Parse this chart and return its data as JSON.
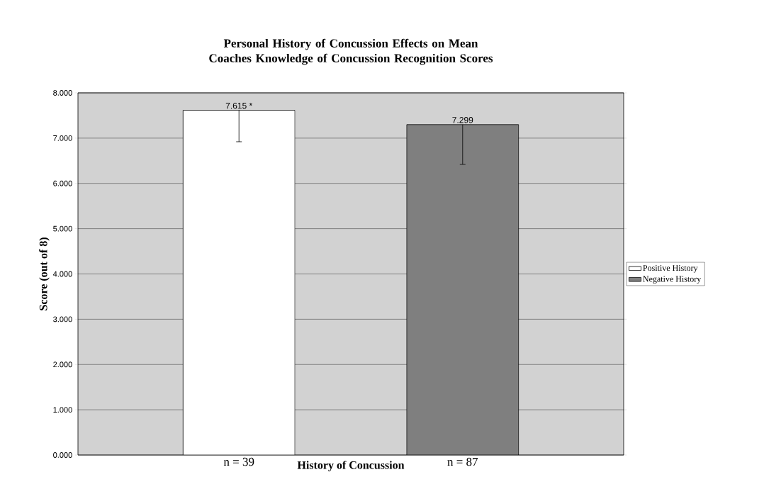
{
  "chart_data": {
    "type": "bar",
    "title": "Personal History of Concussion Effects on Mean Coaches Knowledge of Concussion Recognition Scores",
    "xlabel": "History of Concussion",
    "ylabel": "Score (out of 8)",
    "categories": [
      "n = 39",
      "n = 87"
    ],
    "series": [
      {
        "name": "Positive History",
        "color": "#ffffff",
        "values": [
          7.615,
          null
        ],
        "value_labels": [
          "7.615 *",
          null
        ],
        "errors": [
          [
            6.92,
            7.615
          ],
          null
        ]
      },
      {
        "name": "Negative History",
        "color": "#7f7f7f",
        "values": [
          null,
          7.299
        ],
        "value_labels": [
          null,
          "7.299"
        ],
        "errors": [
          null,
          [
            6.42,
            7.299
          ]
        ]
      }
    ],
    "ylim": [
      0,
      8
    ],
    "yticks": [
      {
        "value": 0,
        "label": "0.000"
      },
      {
        "value": 1,
        "label": "1.000"
      },
      {
        "value": 2,
        "label": "2.000"
      },
      {
        "value": 3,
        "label": "3.000"
      },
      {
        "value": 4,
        "label": "4.000"
      },
      {
        "value": 5,
        "label": "5.000"
      },
      {
        "value": 6,
        "label": "6.000"
      },
      {
        "value": 7,
        "label": "7.000"
      },
      {
        "value": 8,
        "label": "8.000"
      }
    ],
    "grid": "y",
    "legend": "right"
  }
}
